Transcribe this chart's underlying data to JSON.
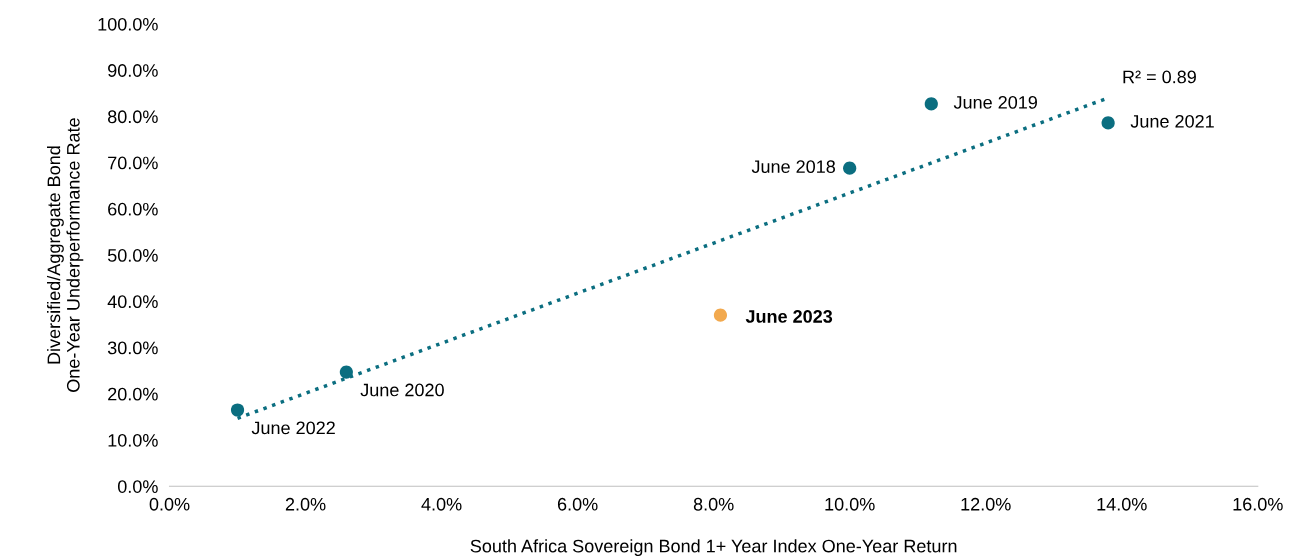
{
  "chart_data": {
    "type": "scatter",
    "xlabel": "South Africa Sovereign Bond 1+ Year Index One-Year Return",
    "ylabel": "Diversified/Aggregate Bond\nOne-Year Underperformance Rate",
    "series": [
      {
        "x": [
          1.0,
          2.6,
          10.0,
          11.2,
          13.8,
          8.1
        ],
        "values": [
          16.5,
          24.7,
          68.8,
          82.7,
          78.6,
          37.0
        ],
        "colors": [
          "#0b6e80",
          "#0b6e80",
          "#0b6e80",
          "#0b6e80",
          "#0b6e80",
          "#f2a94e"
        ],
        "marker": "circle"
      },
      {
        "type": "line",
        "x": [
          1.0,
          13.8
        ],
        "values": [
          14.7,
          84.0
        ],
        "color": "#0b6e80",
        "line_style": "dotted",
        "marker": "none"
      }
    ],
    "annotations": [
      {
        "text": "June 2022",
        "x": 1.0,
        "y": 16.5
      },
      {
        "text": "June 2020",
        "x": 2.6,
        "y": 24.7
      },
      {
        "text": "June 2018",
        "x": 10.0,
        "y": 68.8
      },
      {
        "text": "June 2019",
        "x": 11.2,
        "y": 82.7
      },
      {
        "text": "June 2021",
        "x": 13.8,
        "y": 78.6
      },
      {
        "text": "June 2023",
        "x": 8.1,
        "y": 37.0
      },
      {
        "text": "R² = 0.89",
        "x": 13.8,
        "y": 84.0
      }
    ],
    "xlim": [
      0,
      16
    ],
    "xticks": [
      {
        "value": 0,
        "label": "0.0%"
      },
      {
        "value": 2,
        "label": "2.0%"
      },
      {
        "value": 4,
        "label": "4.0%"
      },
      {
        "value": 6,
        "label": "6.0%"
      },
      {
        "value": 8,
        "label": "8.0%"
      },
      {
        "value": 10,
        "label": "10.0%"
      },
      {
        "value": 12,
        "label": "12.0%"
      },
      {
        "value": 14,
        "label": "14.0%"
      },
      {
        "value": 16,
        "label": "16.0%"
      }
    ],
    "ylim": [
      0,
      100
    ],
    "yticks": [
      {
        "value": 0,
        "label": "0.0%"
      },
      {
        "value": 10,
        "label": "10.0%"
      },
      {
        "value": 20,
        "label": "20.0%"
      },
      {
        "value": 30,
        "label": "30.0%"
      },
      {
        "value": 40,
        "label": "40.0%"
      },
      {
        "value": 50,
        "label": "50.0%"
      },
      {
        "value": 60,
        "label": "60.0%"
      },
      {
        "value": 70,
        "label": "70.0%"
      },
      {
        "value": 80,
        "label": "80.0%"
      },
      {
        "value": 90,
        "label": "90.0%"
      },
      {
        "value": 100,
        "label": "100.0%"
      }
    ],
    "grid": false
  }
}
